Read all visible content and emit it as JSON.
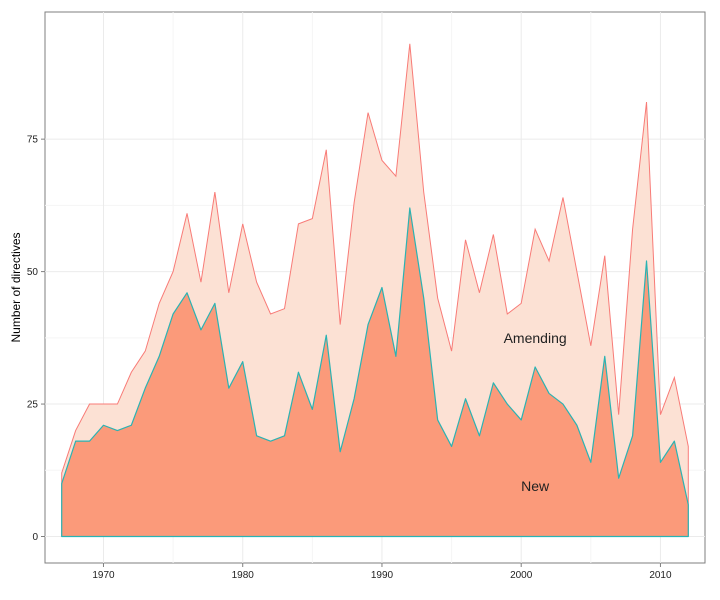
{
  "chart_data": {
    "type": "area",
    "stacked": true,
    "title": "",
    "xlabel": "",
    "ylabel": "Number of directives",
    "xlim": [
      1965.8,
      2013.2
    ],
    "ylim": [
      -5,
      99
    ],
    "xticks": [
      1970,
      1980,
      1990,
      2000,
      2010
    ],
    "yticks": [
      0,
      25,
      50,
      75
    ],
    "grid": true,
    "legend": "none",
    "x": [
      1967,
      1968,
      1969,
      1970,
      1971,
      1972,
      1973,
      1974,
      1975,
      1976,
      1977,
      1978,
      1979,
      1980,
      1981,
      1982,
      1983,
      1984,
      1985,
      1986,
      1987,
      1988,
      1989,
      1990,
      1991,
      1992,
      1993,
      1994,
      1995,
      1996,
      1997,
      1998,
      1999,
      2000,
      2001,
      2002,
      2003,
      2004,
      2005,
      2006,
      2007,
      2008,
      2009,
      2010,
      2011,
      2012
    ],
    "series": [
      {
        "name": "New",
        "fill": "#fb9a7a",
        "stroke": "#2ab3b3",
        "values": [
          10,
          18,
          18,
          21,
          20,
          21,
          28,
          34,
          42,
          46,
          39,
          44,
          28,
          33,
          19,
          18,
          19,
          31,
          24,
          38,
          16,
          26,
          40,
          47,
          34,
          62,
          45,
          22,
          17,
          26,
          19,
          29,
          25,
          22,
          32,
          27,
          25,
          21,
          14,
          34,
          11,
          19,
          52,
          14,
          18,
          6
        ]
      },
      {
        "name": "Amending",
        "fill": "#fce1d4",
        "stroke": "#f87b77",
        "totals": [
          12,
          20,
          25,
          25,
          25,
          31,
          35,
          44,
          50,
          61,
          48,
          65,
          46,
          59,
          48,
          42,
          43,
          59,
          60,
          73,
          40,
          63,
          80,
          71,
          68,
          93,
          65,
          45,
          35,
          56,
          46,
          57,
          42,
          44,
          58,
          52,
          64,
          50,
          36,
          53,
          23,
          58,
          82,
          23,
          30,
          17
        ]
      }
    ],
    "annotations": [
      {
        "text": "Amending",
        "x": 2001,
        "y": 37.5
      },
      {
        "text": "New",
        "x": 2001,
        "y": 9.5
      }
    ]
  }
}
